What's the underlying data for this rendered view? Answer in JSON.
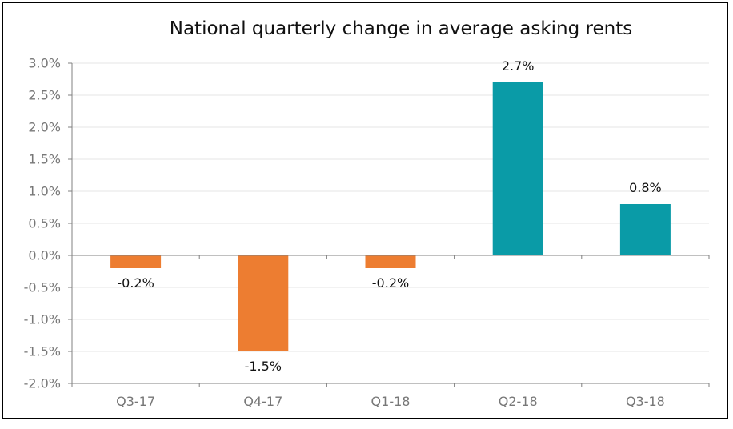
{
  "chart_data": {
    "type": "bar",
    "title": "National quarterly change in average asking rents",
    "xlabel": "",
    "ylabel": "",
    "categories": [
      "Q3-17",
      "Q4-17",
      "Q1-18",
      "Q2-18",
      "Q3-18"
    ],
    "values": [
      -0.2,
      -1.5,
      -0.2,
      2.7,
      0.8
    ],
    "data_labels": [
      "-0.2%",
      "-1.5%",
      "-0.2%",
      "2.7%",
      "0.8%"
    ],
    "ylim": [
      -2.0,
      3.0
    ],
    "yticks": [
      3.0,
      2.5,
      2.0,
      1.5,
      1.0,
      0.5,
      0.0,
      -0.5,
      -1.0,
      -1.5,
      -2.0
    ],
    "ytick_labels": [
      "3.0%",
      "2.5%",
      "2.0%",
      "1.5%",
      "1.0%",
      "0.5%",
      "0.0%",
      "-0.5%",
      "-1.0%",
      "-1.5%",
      "-2.0%"
    ],
    "grid": true,
    "legend": "none",
    "colors": {
      "negative": "#ED7D31",
      "positive": "#0A9BA7",
      "axis": "#808080",
      "grid": "#E6E6E6"
    }
  }
}
